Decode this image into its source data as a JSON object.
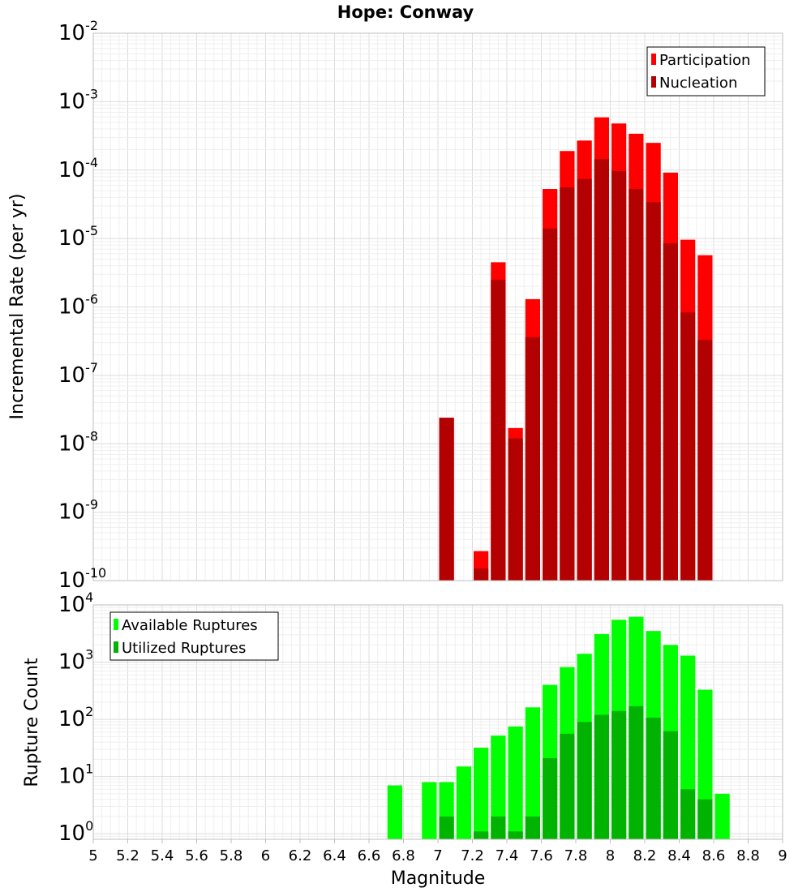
{
  "title": "Hope: Conway",
  "colors": {
    "participation": "#ff0000",
    "nucleation": "#b30000",
    "available": "#00ff00",
    "utilized": "#00b300",
    "grid": "#e6e6e6",
    "frame": "#bfbfbf"
  },
  "chart_data": [
    {
      "type": "bar",
      "scale": "log",
      "xlabel": "",
      "ylabel": "Incremental Rate (per yr)",
      "xlim": [
        5,
        9
      ],
      "ylim": [
        1e-10,
        0.01
      ],
      "grid": true,
      "legend_position": "top-right",
      "ytick_labels": [
        {
          "base": "10",
          "exp": "-10"
        },
        {
          "base": "10",
          "exp": "-9"
        },
        {
          "base": "10",
          "exp": "-8"
        },
        {
          "base": "10",
          "exp": "-7"
        },
        {
          "base": "10",
          "exp": "-6"
        },
        {
          "base": "10",
          "exp": "-5"
        },
        {
          "base": "10",
          "exp": "-4"
        },
        {
          "base": "10",
          "exp": "-3"
        },
        {
          "base": "10",
          "exp": "-2"
        }
      ],
      "x": [
        7.05,
        7.25,
        7.35,
        7.45,
        7.55,
        7.65,
        7.75,
        7.85,
        7.95,
        8.05,
        8.15,
        8.25,
        8.35,
        8.45,
        8.55
      ],
      "series": [
        {
          "name": "Participation",
          "values": [
            2.4e-08,
            2.7e-10,
            4.5e-06,
            1.7e-08,
            1.3e-06,
            5.3e-05,
            0.00019,
            0.00027,
            0.00059,
            0.00048,
            0.00034,
            0.00025,
            9.2e-05,
            9.6e-06,
            5.7e-06
          ]
        },
        {
          "name": "Nucleation",
          "values": [
            2.4e-08,
            1.5e-10,
            2.5e-06,
            1.2e-08,
            3.6e-07,
            1.4e-05,
            5.6e-05,
            7.4e-05,
            0.000145,
            9.7e-05,
            5.3e-05,
            3.4e-05,
            8.5e-06,
            8.3e-07,
            3.3e-07
          ]
        }
      ]
    },
    {
      "type": "bar",
      "scale": "log",
      "xlabel": "Magnitude",
      "ylabel": "Rupture Count",
      "xlim": [
        5,
        9
      ],
      "ylim": [
        0.8,
        10000
      ],
      "grid": true,
      "legend_position": "top-left",
      "xtick_labels": [
        "5",
        "5.2",
        "5.4",
        "5.6",
        "5.8",
        "6",
        "6.2",
        "6.4",
        "6.6",
        "6.8",
        "7",
        "7.2",
        "7.4",
        "7.6",
        "7.8",
        "8",
        "8.2",
        "8.4",
        "8.6",
        "8.8",
        "9"
      ],
      "ytick_labels": [
        {
          "base": "10",
          "exp": "0"
        },
        {
          "base": "10",
          "exp": "1"
        },
        {
          "base": "10",
          "exp": "2"
        },
        {
          "base": "10",
          "exp": "3"
        },
        {
          "base": "10",
          "exp": "4"
        }
      ],
      "x": [
        6.75,
        6.95,
        7.05,
        7.15,
        7.25,
        7.35,
        7.45,
        7.55,
        7.65,
        7.75,
        7.85,
        7.95,
        8.05,
        8.15,
        8.25,
        8.35,
        8.45,
        8.55,
        8.65
      ],
      "series": [
        {
          "name": "Available Ruptures",
          "values": [
            7,
            8,
            8,
            15,
            32,
            52,
            75,
            162,
            400,
            820,
            1400,
            3100,
            5500,
            6200,
            3500,
            2000,
            1300,
            330,
            5
          ]
        },
        {
          "name": "Utilized Ruptures",
          "values": [
            null,
            null,
            2,
            null,
            1.1,
            2,
            1.1,
            2,
            21,
            56,
            90,
            120,
            140,
            170,
            107,
            62,
            6,
            4,
            null
          ]
        }
      ]
    }
  ]
}
